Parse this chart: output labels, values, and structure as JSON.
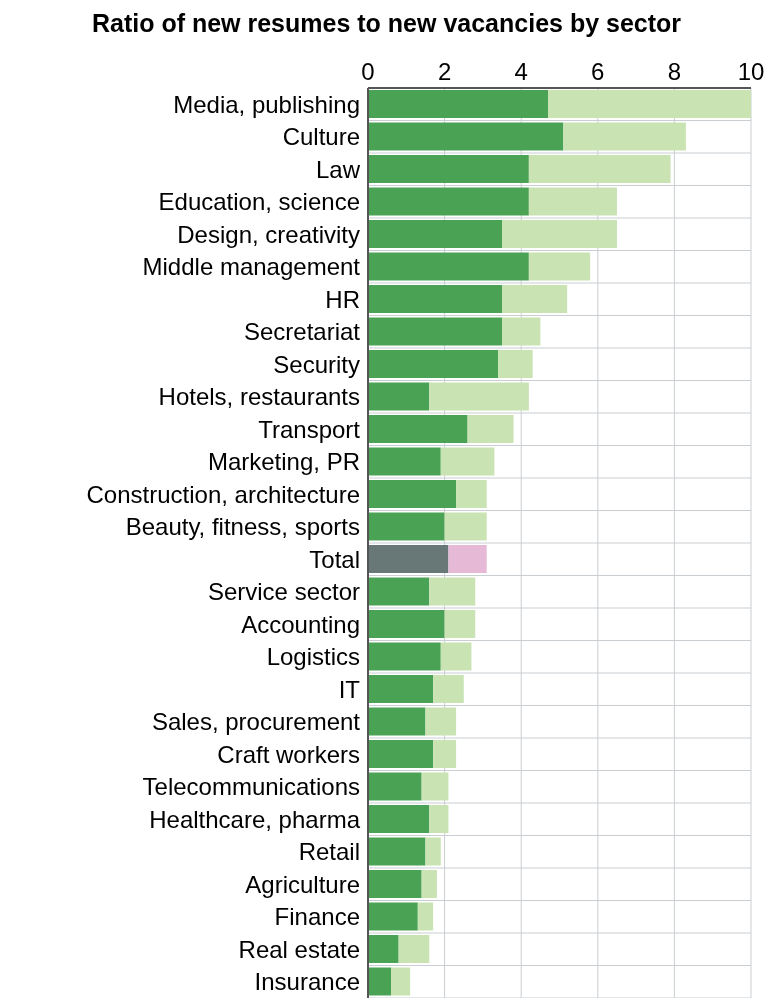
{
  "chart_data": {
    "type": "bar",
    "orientation": "horizontal",
    "stacked": true,
    "title": "Ratio of new resumes to new vacancies by sector",
    "categories": [
      "Media, publishing",
      "Culture",
      "Law",
      "Education, science",
      "Design, creativity",
      "Middle management",
      "HR",
      "Secretariat",
      "Security",
      "Hotels, restaurants",
      "Transport",
      "Marketing, PR",
      "Construction, architecture",
      "Beauty, fitness, sports",
      "Total",
      "Service sector",
      "Accounting",
      "Logistics",
      "IT",
      "Sales, procurement",
      "Craft workers",
      "Telecommunications",
      "Healthcare, pharma",
      "Retail",
      "Agriculture",
      "Finance",
      "Real estate",
      "Insurance"
    ],
    "series": [
      {
        "colors": [
          "#4aa355",
          "#4aa355",
          "#4aa355",
          "#4aa355",
          "#4aa355",
          "#4aa355",
          "#4aa355",
          "#4aa355",
          "#4aa355",
          "#4aa355",
          "#4aa355",
          "#4aa355",
          "#4aa355",
          "#4aa355",
          "#677876",
          "#4aa355",
          "#4aa355",
          "#4aa355",
          "#4aa355",
          "#4aa355",
          "#4aa355",
          "#4aa355",
          "#4aa355",
          "#4aa355",
          "#4aa355",
          "#4aa355",
          "#4aa355",
          "#4aa355"
        ],
        "values": [
          4.7,
          5.1,
          4.2,
          4.2,
          3.5,
          4.2,
          3.5,
          3.5,
          3.4,
          1.6,
          2.6,
          1.9,
          2.3,
          2.0,
          2.1,
          1.6,
          2.0,
          1.9,
          1.7,
          1.5,
          1.7,
          1.4,
          1.6,
          1.5,
          1.4,
          1.3,
          0.8,
          0.6
        ]
      },
      {
        "colors": [
          "#c9e3b3",
          "#c9e3b3",
          "#c9e3b3",
          "#c9e3b3",
          "#c9e3b3",
          "#c9e3b3",
          "#c9e3b3",
          "#c9e3b3",
          "#c9e3b3",
          "#c9e3b3",
          "#c9e3b3",
          "#c9e3b3",
          "#c9e3b3",
          "#c9e3b3",
          "#e6b9d6",
          "#c9e3b3",
          "#c9e3b3",
          "#c9e3b3",
          "#c9e3b3",
          "#c9e3b3",
          "#c9e3b3",
          "#c9e3b3",
          "#c9e3b3",
          "#c9e3b3",
          "#c9e3b3",
          "#c9e3b3",
          "#c9e3b3",
          "#c9e3b3"
        ],
        "values": [
          5.3,
          3.2,
          3.7,
          2.3,
          3.0,
          1.6,
          1.7,
          1.0,
          0.9,
          2.6,
          1.2,
          1.4,
          0.8,
          1.1,
          1.0,
          1.2,
          0.8,
          0.8,
          0.8,
          0.8,
          0.6,
          0.7,
          0.5,
          0.4,
          0.4,
          0.4,
          0.8,
          0.5
        ]
      }
    ],
    "xlim": [
      0,
      10
    ],
    "xticks": [
      0,
      2,
      4,
      6,
      8,
      10
    ],
    "grid": true
  }
}
